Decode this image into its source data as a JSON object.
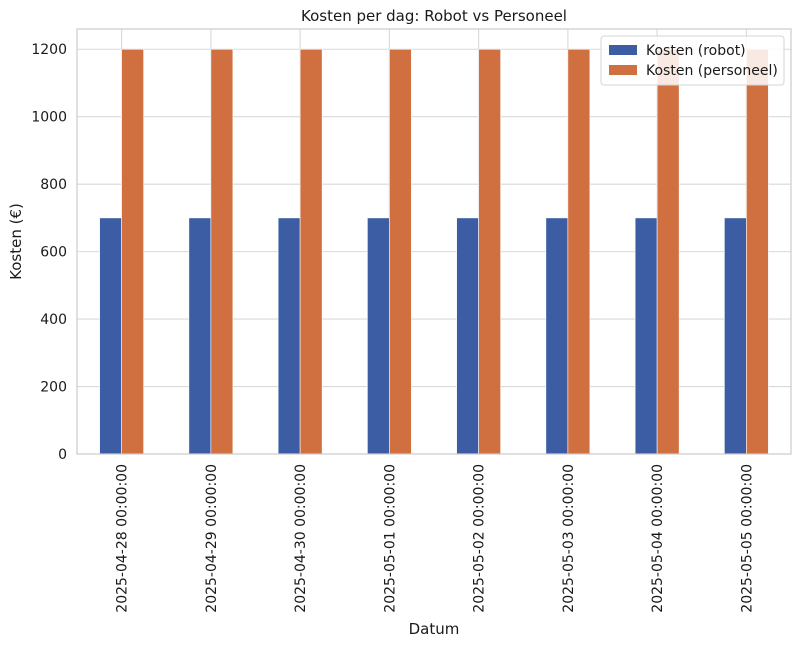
{
  "chart_data": {
    "type": "bar",
    "title": "Kosten per dag: Robot vs Personeel",
    "xlabel": "Datum",
    "ylabel": "Kosten (€)",
    "categories": [
      "2025-04-28 00:00:00",
      "2025-04-29 00:00:00",
      "2025-04-30 00:00:00",
      "2025-05-01 00:00:00",
      "2025-05-02 00:00:00",
      "2025-05-03 00:00:00",
      "2025-05-04 00:00:00",
      "2025-05-05 00:00:00"
    ],
    "series": [
      {
        "name": "Kosten (robot)",
        "color": "#3c5da3",
        "values": [
          700,
          700,
          700,
          700,
          700,
          700,
          700,
          700
        ]
      },
      {
        "name": "Kosten (personeel)",
        "color": "#d06f40",
        "values": [
          1200,
          1200,
          1200,
          1200,
          1200,
          1200,
          1200,
          1200
        ]
      }
    ],
    "ylim": [
      0,
      1260
    ],
    "yticks": [
      0,
      200,
      400,
      600,
      800,
      1000,
      1200
    ],
    "grid": true,
    "legend_position": "top-right"
  }
}
